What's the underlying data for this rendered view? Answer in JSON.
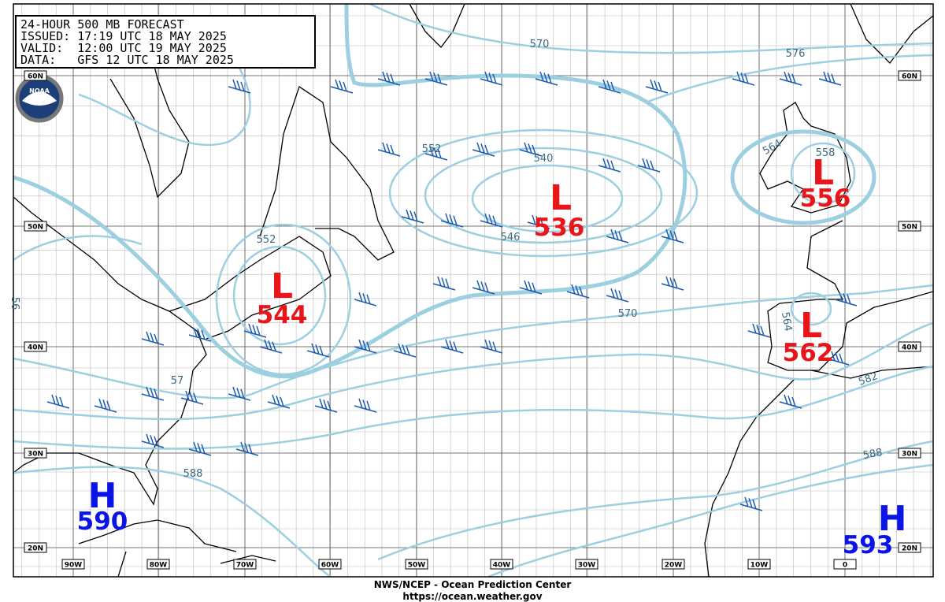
{
  "header": {
    "lines": [
      "24-HOUR 500 MB FORECAST",
      "ISSUED: 17:19 UTC 18 MAY 2025",
      "VALID:  12:00 UTC 19 MAY 2025",
      "DATA:   GFS 12 UTC 18 MAY 2025"
    ]
  },
  "logo": "NOAA",
  "centers": [
    {
      "symbol": "L",
      "value": "536"
    },
    {
      "symbol": "L",
      "value": "544"
    },
    {
      "symbol": "L",
      "value": "556"
    },
    {
      "symbol": "L",
      "value": "562"
    },
    {
      "symbol": "H",
      "value": "590"
    },
    {
      "symbol": "H",
      "value": "593"
    }
  ],
  "contour_labels": [
    "570",
    "576",
    "552",
    "540",
    "546",
    "564",
    "558",
    "552",
    "570",
    "564",
    "582",
    "588",
    "588",
    "57",
    "56"
  ],
  "latitude_labels": [
    "60N",
    "50N",
    "40N",
    "30N",
    "20N"
  ],
  "longitude_labels": [
    "90W",
    "80W",
    "70W",
    "60W",
    "50W",
    "40W",
    "30W",
    "20W",
    "10W",
    "0"
  ],
  "footer": {
    "line1": "NWS/NCEP - Ocean Prediction Center",
    "line2": "https://ocean.weather.gov"
  }
}
